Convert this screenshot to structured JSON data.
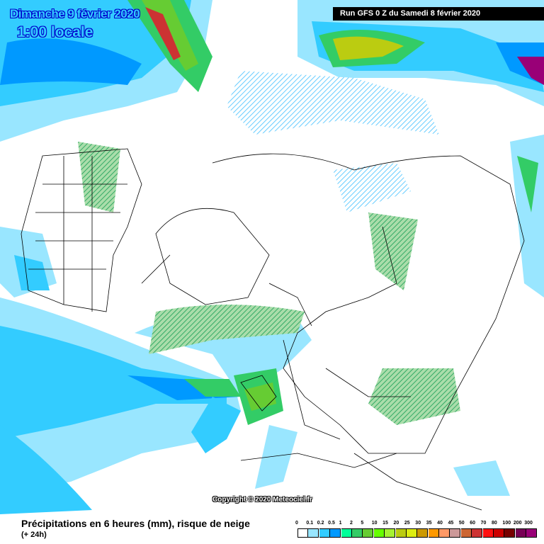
{
  "header": {
    "date": "Dimanche 9 février 2020",
    "time": "1:00 locale",
    "run": "Run GFS 0 Z du Samedi 8 février 2020"
  },
  "copyright": "Copyright © 2020 Meteociel.fr",
  "footer": {
    "caption": "Précipitations en 6 heures (mm), risque de neige",
    "subcaption": "(+ 24h)"
  },
  "legend": [
    {
      "label": "0",
      "color": "#ffffff"
    },
    {
      "label": "0.1",
      "color": "#99e6ff"
    },
    {
      "label": "0.2",
      "color": "#33ccff"
    },
    {
      "label": "0.5",
      "color": "#0099ff"
    },
    {
      "label": "1",
      "color": "#00ff99"
    },
    {
      "label": "2",
      "color": "#33cc66"
    },
    {
      "label": "5",
      "color": "#66cc33"
    },
    {
      "label": "10",
      "color": "#66ff00"
    },
    {
      "label": "15",
      "color": "#a6f233"
    },
    {
      "label": "20",
      "color": "#bbcc11"
    },
    {
      "label": "25",
      "color": "#ddee11"
    },
    {
      "label": "30",
      "color": "#cc9900"
    },
    {
      "label": "35",
      "color": "#ff9900"
    },
    {
      "label": "40",
      "color": "#ff9966"
    },
    {
      "label": "45",
      "color": "#cc9999"
    },
    {
      "label": "50",
      "color": "#cc6633"
    },
    {
      "label": "60",
      "color": "#cc3333"
    },
    {
      "label": "70",
      "color": "#ff1111"
    },
    {
      "label": "80",
      "color": "#cc0000"
    },
    {
      "label": "100",
      "color": "#770000"
    },
    {
      "label": "200",
      "color": "#770055"
    },
    {
      "label": "300",
      "color": "#990077"
    }
  ]
}
